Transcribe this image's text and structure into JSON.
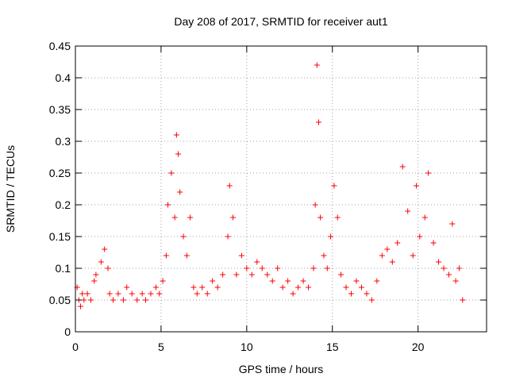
{
  "chart_data": {
    "type": "scatter",
    "title": "Day 208 of 2017, SRMTID for receiver aut1",
    "xlabel": "GPS time / hours",
    "ylabel": "SRMTID / TECUs",
    "xlim": [
      0,
      24
    ],
    "ylim": [
      0,
      0.45
    ],
    "xticks": [
      0,
      5,
      10,
      15,
      20
    ],
    "yticks": [
      0,
      0.05,
      0.1,
      0.15,
      0.2,
      0.25,
      0.3,
      0.35,
      0.4,
      0.45
    ],
    "grid": true,
    "legend": "none",
    "marker": "+",
    "series": [
      {
        "name": "aut1",
        "color": "#ff0000",
        "x": [
          0.1,
          0.2,
          0.3,
          0.4,
          0.5,
          0.7,
          0.9,
          1.1,
          1.2,
          1.5,
          1.7,
          1.9,
          2.0,
          2.2,
          2.5,
          2.8,
          3.0,
          3.3,
          3.6,
          3.9,
          4.1,
          4.4,
          4.7,
          4.9,
          5.1,
          5.3,
          5.4,
          5.6,
          5.8,
          5.9,
          6.0,
          6.1,
          6.3,
          6.5,
          6.7,
          6.9,
          7.1,
          7.4,
          7.7,
          8.0,
          8.3,
          8.6,
          8.9,
          9.0,
          9.2,
          9.4,
          9.7,
          10.0,
          10.3,
          10.6,
          10.9,
          11.2,
          11.5,
          11.8,
          12.1,
          12.4,
          12.7,
          13.0,
          13.3,
          13.6,
          13.9,
          14.0,
          14.1,
          14.2,
          14.3,
          14.5,
          14.7,
          14.9,
          15.1,
          15.3,
          15.5,
          15.8,
          16.1,
          16.4,
          16.7,
          17.0,
          17.3,
          17.6,
          17.9,
          18.2,
          18.5,
          18.8,
          19.1,
          19.4,
          19.7,
          19.9,
          20.1,
          20.4,
          20.6,
          20.9,
          21.2,
          21.5,
          21.8,
          22.0,
          22.2,
          22.4,
          22.6
        ],
        "y": [
          0.07,
          0.05,
          0.04,
          0.06,
          0.05,
          0.06,
          0.05,
          0.08,
          0.09,
          0.11,
          0.13,
          0.1,
          0.06,
          0.05,
          0.06,
          0.05,
          0.07,
          0.06,
          0.05,
          0.06,
          0.05,
          0.06,
          0.07,
          0.06,
          0.08,
          0.12,
          0.2,
          0.25,
          0.18,
          0.31,
          0.28,
          0.22,
          0.15,
          0.12,
          0.18,
          0.07,
          0.06,
          0.07,
          0.06,
          0.08,
          0.07,
          0.09,
          0.15,
          0.23,
          0.18,
          0.09,
          0.12,
          0.1,
          0.09,
          0.11,
          0.1,
          0.09,
          0.08,
          0.1,
          0.07,
          0.08,
          0.06,
          0.07,
          0.08,
          0.07,
          0.1,
          0.2,
          0.42,
          0.33,
          0.18,
          0.12,
          0.1,
          0.15,
          0.23,
          0.18,
          0.09,
          0.07,
          0.06,
          0.08,
          0.07,
          0.06,
          0.05,
          0.08,
          0.12,
          0.13,
          0.11,
          0.14,
          0.26,
          0.19,
          0.12,
          0.23,
          0.15,
          0.18,
          0.25,
          0.14,
          0.11,
          0.1,
          0.09,
          0.17,
          0.08,
          0.1,
          0.05
        ]
      }
    ]
  }
}
